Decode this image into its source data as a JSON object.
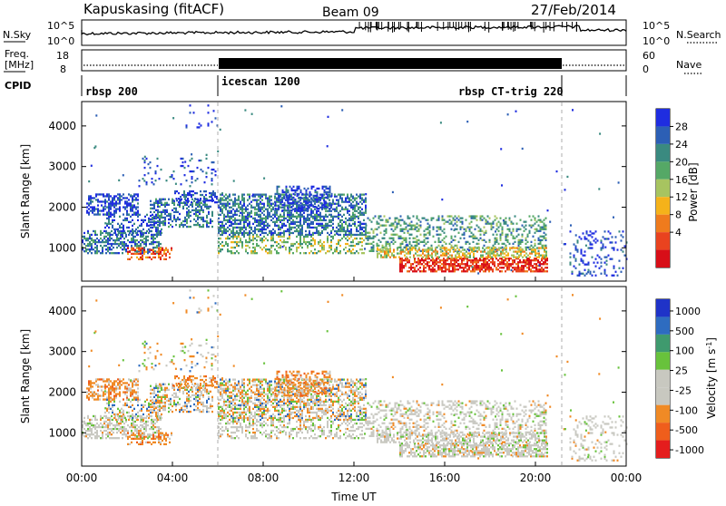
{
  "header": {
    "station": "Kapuskasing (fitACF)",
    "beam": "Beam 09",
    "date": "27/Feb/2014"
  },
  "top_panel": {
    "left_label": "N.Sky",
    "right_label": "N.Search",
    "left_ticks": [
      "10^5",
      "10^0"
    ],
    "right_ticks": [
      "10^5",
      "10^0"
    ]
  },
  "freq_panel": {
    "left_label_1": "Freq.",
    "left_label_2": "[MHz]",
    "left_ticks": [
      "18",
      "8"
    ],
    "right_label": "Nave",
    "right_ticks": [
      "60",
      "0"
    ]
  },
  "cpid_panel": {
    "label": "CPID",
    "modes": [
      "rbsp 200",
      "icescan 1200",
      "rbsp CT-trig 220"
    ]
  },
  "power_panel": {
    "ylabel": "Slant Range [km]",
    "yticks": [
      "4000",
      "3000",
      "2000",
      "1000"
    ],
    "colorbar_label": "Power [dB]",
    "colorbar_ticks": [
      "28",
      "24",
      "20",
      "16",
      "12",
      "8",
      "4"
    ],
    "colors": [
      "#1f2de0",
      "#2c5fb5",
      "#3a8a80",
      "#55a866",
      "#a7c460",
      "#f5b21a",
      "#ef7b1d",
      "#e9431f",
      "#d80e18"
    ]
  },
  "velocity_panel": {
    "ylabel": "Slant Range [km]",
    "yticks": [
      "4000",
      "3000",
      "2000",
      "1000"
    ],
    "colorbar_label": "Velocity [m s",
    "colorbar_label_sup": "-1",
    "colorbar_label_end": "]",
    "colorbar_ticks": [
      "1000",
      "500",
      "100",
      "25",
      "-25",
      "-100",
      "-500",
      "-1000"
    ],
    "colors": [
      "#1f33c8",
      "#2e6cc0",
      "#3f9a6e",
      "#68c23c",
      "#c8c8c0",
      "#c8c8c0",
      "#f08a25",
      "#ef5e1c",
      "#e41d1d"
    ]
  },
  "xaxis": {
    "label": "Time UT",
    "ticks": [
      "00:00",
      "04:00",
      "08:00",
      "12:00",
      "16:00",
      "20:00",
      "00:00"
    ]
  },
  "chart_data": {
    "type": "heatmap",
    "x_range_hours": [
      0,
      24
    ],
    "y_range_km": [
      180,
      4600
    ],
    "mode_changes_hours": [
      6.0,
      21.0
    ],
    "xlabel": "Time UT",
    "ylabel": "Slant Range [km]"
  }
}
